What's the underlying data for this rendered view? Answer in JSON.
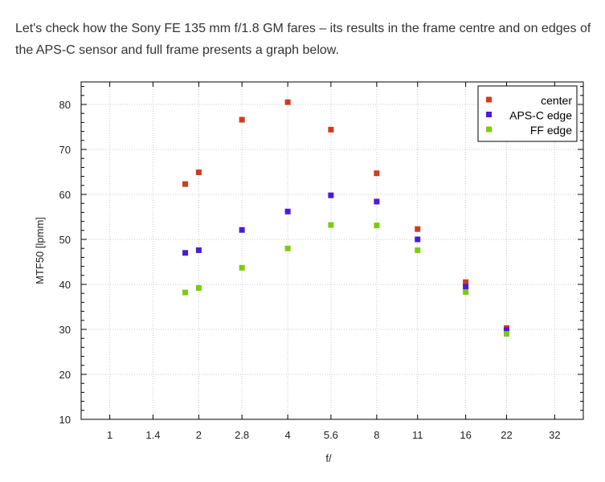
{
  "article": {
    "intro": "Let's check how the Sony FE 135 mm f/1.8 GM fares – its results in the frame centre and on edges of the APS-C sensor and full frame presents a graph below."
  },
  "chart_data": {
    "type": "scatter",
    "xlabel": "f/",
    "ylabel": "MTF50 [lpmm]",
    "xscale": "log",
    "xticks": [
      "1",
      "1.4",
      "2",
      "2.8",
      "4",
      "5.6",
      "8",
      "11",
      "16",
      "22",
      "32"
    ],
    "xlim": [
      0.8,
      40
    ],
    "ylim": [
      10,
      85
    ],
    "yticks": [
      10,
      20,
      30,
      40,
      50,
      60,
      70,
      80
    ],
    "grid": true,
    "legend_position": "top-right",
    "x": [
      1.8,
      2,
      2.8,
      4,
      5.6,
      8,
      11,
      16,
      22
    ],
    "series": [
      {
        "name": "center",
        "color": "#d03b1f",
        "values": [
          62.3,
          64.9,
          76.6,
          80.5,
          74.4,
          64.7,
          52.3,
          40.5,
          30.3
        ]
      },
      {
        "name": "APS-C edge",
        "color": "#4a1bd8",
        "values": [
          47.0,
          47.6,
          52.1,
          56.2,
          59.8,
          58.4,
          50.0,
          39.5,
          29.8
        ]
      },
      {
        "name": "FF edge",
        "color": "#7ccb10",
        "values": [
          38.2,
          39.2,
          43.7,
          48.0,
          53.2,
          53.1,
          47.6,
          38.3,
          29.0
        ]
      }
    ]
  }
}
